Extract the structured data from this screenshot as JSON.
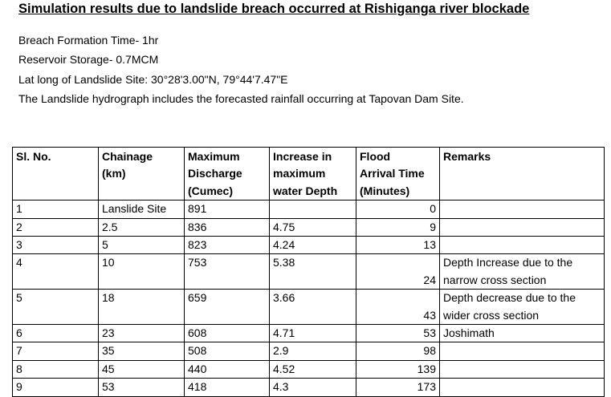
{
  "title": "Simulation results due to landslide breach occurred at Rishiganga river blockade",
  "info": {
    "breach_time": "Breach Formation Time- 1hr",
    "storage": "Reservoir Storage- 0.7MCM",
    "latlong": "Lat long of Landslide Site:  30°28'3.00\"N, 79°44'7.47\"E",
    "hydrograph": "The Landslide hydrograph includes the forecasted rainfall occurring at Tapovan Dam Site."
  },
  "table": {
    "headers": {
      "sl_no": "Sl. No.",
      "chainage_1": "Chainage",
      "chainage_2": "(km)",
      "discharge_1": "Maximum",
      "discharge_2": "Discharge",
      "discharge_3": "(Cumec)",
      "depth_1": "Increase in",
      "depth_2": "maximum",
      "depth_3": "water Depth",
      "arrival_1": "Flood",
      "arrival_2": "Arrival Time",
      "arrival_3": "(Minutes)",
      "remarks": "Remarks"
    },
    "rows": [
      {
        "sl": "1",
        "chainage": "Lanslide Site",
        "discharge": "891",
        "depth": "",
        "arrival": "0",
        "remark_1": "",
        "remark_2": ""
      },
      {
        "sl": "2",
        "chainage": "2.5",
        "discharge": "836",
        "depth": "4.75",
        "arrival": "9",
        "remark_1": "",
        "remark_2": ""
      },
      {
        "sl": "3",
        "chainage": "5",
        "discharge": "823",
        "depth": "4.24",
        "arrival": "13",
        "remark_1": "",
        "remark_2": ""
      },
      {
        "sl": "4",
        "chainage": "10",
        "discharge": "753",
        "depth": "5.38",
        "arrival": "24",
        "remark_1": "Depth Increase due to the",
        "remark_2": "narrow cross section"
      },
      {
        "sl": "5",
        "chainage": "18",
        "discharge": "659",
        "depth": "3.66",
        "arrival": "43",
        "remark_1": "Depth decrease due to the",
        "remark_2": "wider cross section"
      },
      {
        "sl": "6",
        "chainage": "23",
        "discharge": "608",
        "depth": "4.71",
        "arrival": "53",
        "remark_1": "Joshimath",
        "remark_2": ""
      },
      {
        "sl": "7",
        "chainage": "35",
        "discharge": "508",
        "depth": "2.9",
        "arrival": "98",
        "remark_1": "",
        "remark_2": ""
      },
      {
        "sl": "8",
        "chainage": "45",
        "discharge": "440",
        "depth": "4.52",
        "arrival": "139",
        "remark_1": "",
        "remark_2": ""
      },
      {
        "sl": "9",
        "chainage": "53",
        "discharge": "418",
        "depth": "4.3",
        "arrival": "173",
        "remark_1": "",
        "remark_2": ""
      }
    ]
  }
}
